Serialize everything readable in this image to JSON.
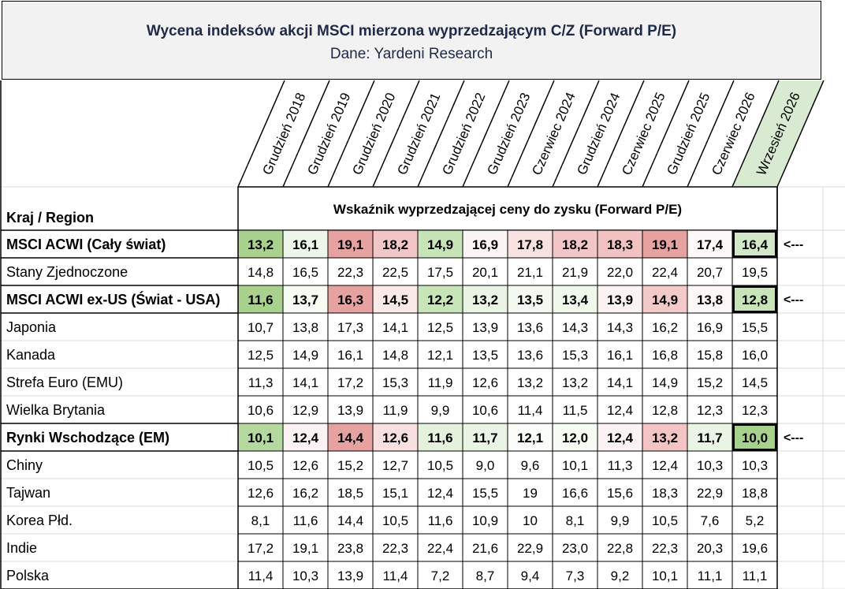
{
  "title": "Wycena indeksów akcji MSCI mierzona wyprzedzającym C/Z (Forward P/E)",
  "subtitle": "Dane: Yardeni Research",
  "chart_data": {
    "type": "table",
    "row_header": "Kraj / Region",
    "measure_label": "Wskaźnik wyprzedzającej ceny do zysku (Forward P/E)",
    "columns": [
      "Grudzień 2018",
      "Grudzień 2019",
      "Grudzień 2020",
      "Grudzień 2021",
      "Grudzień 2022",
      "Grudzień 2023",
      "Czerwiec 2024",
      "Grudzień 2024",
      "Czerwiec 2025",
      "Grudzień 2025",
      "Czerwiec 2026",
      "Wrzesień 2026"
    ],
    "highlight_column": 11,
    "rows": [
      {
        "label": "MSCI ACWI (Cały świat)",
        "bold": true,
        "heat": true,
        "arrow": "<---",
        "values": [
          "13,2",
          "16,1",
          "19,1",
          "18,2",
          "14,9",
          "16,9",
          "17,8",
          "18,2",
          "18,3",
          "19,1",
          "17,4",
          "16,4"
        ],
        "colors": [
          "#a9d18e",
          "#eef6ea",
          "#e6a1a1",
          "#f2c6c6",
          "#c7e3b8",
          "#fbf4f4",
          "#f8e1e1",
          "#f2c6c6",
          "#f2c2c2",
          "#e6a1a1",
          "#fcf8f8",
          "#d3e8c8"
        ]
      },
      {
        "label": "Stany Zjednoczone",
        "bold": false,
        "values": [
          "14,8",
          "16,5",
          "22,3",
          "22,5",
          "17,5",
          "20,1",
          "21,1",
          "21,9",
          "22,0",
          "22,4",
          "20,7",
          "19,5"
        ]
      },
      {
        "label": "MSCI ACWI ex-US (Świat - USA)",
        "bold": true,
        "heat": true,
        "arrow": "<---",
        "values": [
          "11,6",
          "13,7",
          "16,3",
          "14,5",
          "12,2",
          "13,2",
          "13,5",
          "13,4",
          "13,9",
          "14,9",
          "13,8",
          "12,8"
        ],
        "colors": [
          "#a9d18e",
          "#f6fbf4",
          "#e6a1a1",
          "#fae9e9",
          "#c8e4b9",
          "#e9f4e4",
          "#f3f9f0",
          "#f0f8ec",
          "#fbf2f2",
          "#f3caca",
          "#fdf7f7",
          "#c8e4b9"
        ]
      },
      {
        "label": "Japonia",
        "bold": false,
        "values": [
          "10,7",
          "13,8",
          "17,3",
          "14,1",
          "12,5",
          "13,9",
          "13,6",
          "14,3",
          "14,3",
          "16,2",
          "16,9",
          "15,5"
        ]
      },
      {
        "label": "Kanada",
        "bold": false,
        "values": [
          "12,5",
          "14,9",
          "16,1",
          "14,8",
          "12,1",
          "13,5",
          "13,6",
          "15,3",
          "16,1",
          "16,8",
          "15,8",
          "16,0"
        ]
      },
      {
        "label": "Strefa Euro (EMU)",
        "bold": false,
        "values": [
          "11,3",
          "14,1",
          "17,2",
          "15,3",
          "11,9",
          "12,6",
          "13,2",
          "13,2",
          "14,1",
          "14,9",
          "15,2",
          "14,5"
        ]
      },
      {
        "label": "Wielka Brytania",
        "bold": false,
        "values": [
          "10,6",
          "12,9",
          "13,9",
          "11,9",
          "9,9",
          "10,6",
          "11,4",
          "11,5",
          "12,4",
          "12,8",
          "12,3",
          "12,3"
        ]
      },
      {
        "label": "Rynki Wschodzące (EM)",
        "bold": true,
        "heat": true,
        "arrow": "<---",
        "values": [
          "10,1",
          "12,4",
          "14,4",
          "12,6",
          "11,6",
          "11,7",
          "12,1",
          "12,0",
          "12,4",
          "13,2",
          "11,7",
          "10,0"
        ],
        "colors": [
          "#b5d8a0",
          "#fbf3f3",
          "#e6a1a1",
          "#f8e0e0",
          "#e4f1dd",
          "#e9f4e4",
          "#fbfdfa",
          "#f6fbf4",
          "#fbf3f3",
          "#f2c4c4",
          "#e9f4e4",
          "#a9d18e"
        ]
      },
      {
        "label": "Chiny",
        "bold": false,
        "values": [
          "10,5",
          "12,6",
          "15,2",
          "12,7",
          "10,5",
          "9,0",
          "9,6",
          "10,1",
          "11,3",
          "12,4",
          "10,3",
          "10,3"
        ]
      },
      {
        "label": "Tajwan",
        "bold": false,
        "values": [
          "12,6",
          "16,2",
          "18,5",
          "15,1",
          "12,4",
          "15,5",
          "19",
          "16,6",
          "15,6",
          "18,3",
          "22,9",
          "18,8"
        ]
      },
      {
        "label": "Korea Płd.",
        "bold": false,
        "values": [
          "8,1",
          "11,6",
          "14,4",
          "10,5",
          "11,6",
          "10,9",
          "10",
          "8,1",
          "9,9",
          "10,5",
          "7,6",
          "5,2"
        ]
      },
      {
        "label": "Indie",
        "bold": false,
        "values": [
          "17,2",
          "19,1",
          "23,8",
          "22,3",
          "22,4",
          "21,6",
          "22,9",
          "23,0",
          "22,8",
          "22,3",
          "20,3",
          "19,6"
        ]
      },
      {
        "label": "Polska",
        "bold": false,
        "values": [
          "11,4",
          "10,3",
          "13,9",
          "11,4",
          "7,2",
          "8,7",
          "9,4",
          "7,3",
          "9,2",
          "10,1",
          "11,1",
          "11,1"
        ]
      }
    ]
  }
}
